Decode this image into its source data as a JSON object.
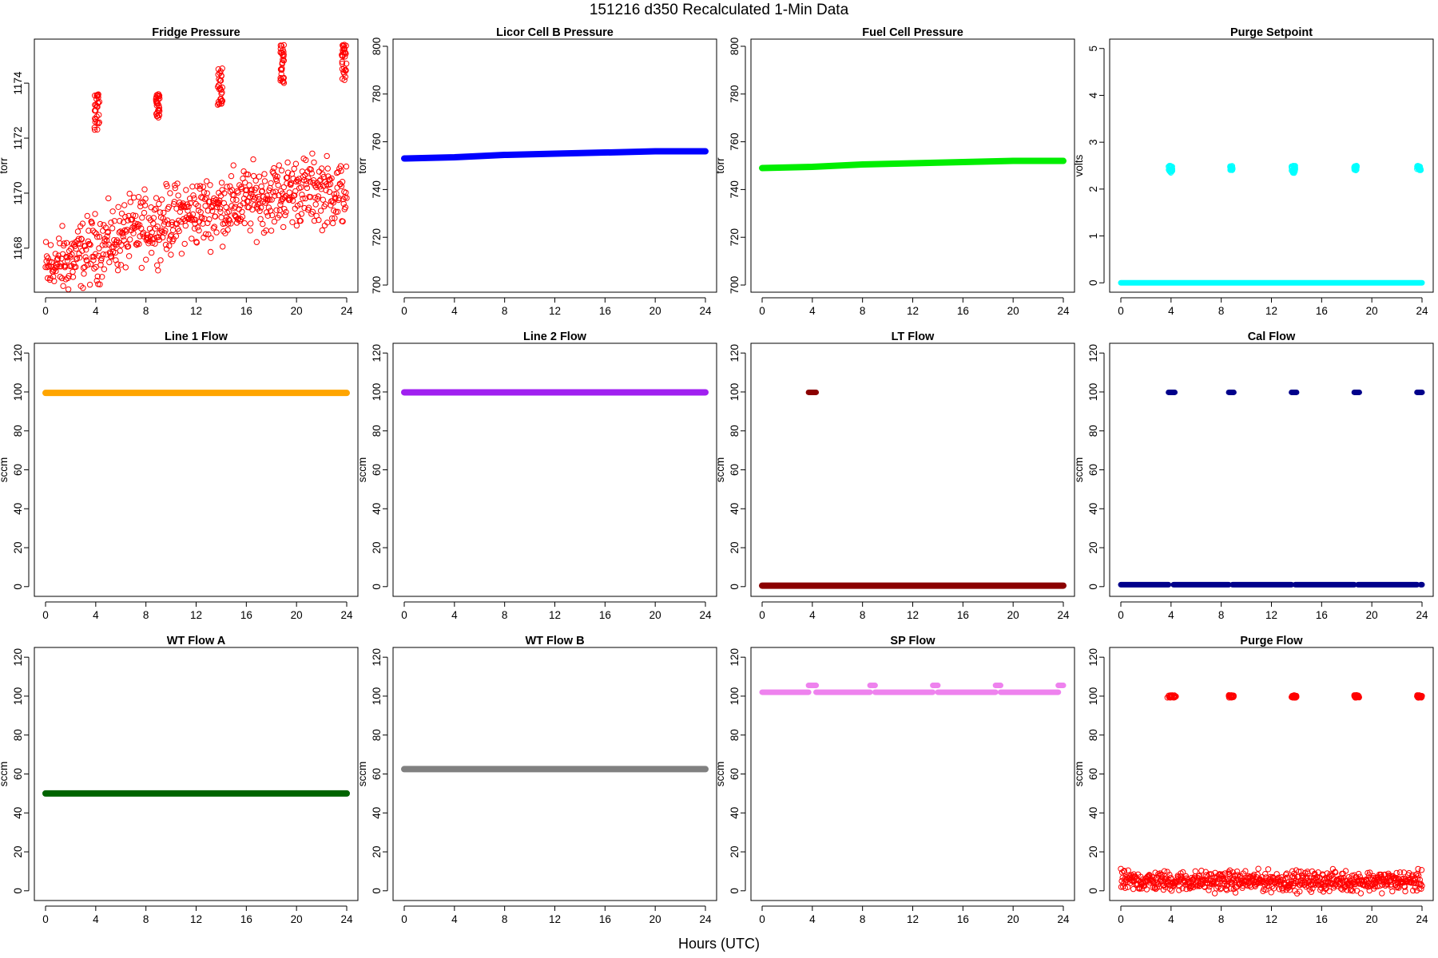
{
  "figure": {
    "title": "151216   d350   Recalculated 1-Min Data",
    "xlabel": "Hours (UTC)"
  },
  "chart_data": [
    {
      "type": "scatter",
      "title": "Fridge Pressure",
      "ylabel": "torr",
      "xlim": [
        0,
        24
      ],
      "ylim": [
        1166.4,
        1175.6
      ],
      "xticks": [
        0,
        4,
        8,
        12,
        16,
        20,
        24
      ],
      "yticks": [
        1168,
        1170,
        1172,
        1174
      ],
      "color": "#ff0000",
      "marker": "open-circle",
      "grid": false,
      "series": [
        {
          "kind": "trend",
          "x": [
            0,
            1,
            2,
            3,
            4,
            5,
            6,
            7,
            8,
            9,
            10,
            11,
            12,
            13,
            14,
            15,
            16,
            17,
            18,
            19,
            20,
            21,
            22,
            23,
            24
          ],
          "y": [
            1167.2,
            1167.4,
            1167.6,
            1167.8,
            1168.0,
            1168.2,
            1168.4,
            1168.6,
            1168.8,
            1168.9,
            1169.0,
            1169.2,
            1169.3,
            1169.4,
            1169.5,
            1169.6,
            1169.7,
            1169.8,
            1169.9,
            1170.0,
            1170.1,
            1170.1,
            1170.1,
            1170.0,
            1170.0
          ],
          "spread": 0.6
        },
        {
          "kind": "cluster",
          "x": [
            3.9,
            4.3
          ],
          "y": [
            1172.3,
            1173.6
          ]
        },
        {
          "kind": "cluster",
          "x": [
            8.8,
            9.1
          ],
          "y": [
            1172.7,
            1173.6
          ]
        },
        {
          "kind": "cluster",
          "x": [
            13.7,
            14.1
          ],
          "y": [
            1173.2,
            1174.6
          ]
        },
        {
          "kind": "cluster",
          "x": [
            18.7,
            19.0
          ],
          "y": [
            1174.0,
            1175.4
          ]
        },
        {
          "kind": "cluster",
          "x": [
            23.6,
            24.0
          ],
          "y": [
            1174.0,
            1175.4
          ]
        }
      ]
    },
    {
      "type": "scatter",
      "title": "Licor Cell B Pressure",
      "ylabel": "torr",
      "xlim": [
        0,
        24
      ],
      "ylim": [
        697,
        803
      ],
      "xticks": [
        0,
        4,
        8,
        12,
        16,
        20,
        24
      ],
      "yticks": [
        700,
        720,
        740,
        760,
        780,
        800
      ],
      "color": "#0000ff",
      "marker": "filled-band",
      "grid": false,
      "series": [
        {
          "kind": "line",
          "x": [
            0,
            4,
            8,
            12,
            16,
            20,
            24
          ],
          "y": [
            753,
            753.5,
            754.5,
            755,
            755.5,
            756,
            756
          ]
        }
      ]
    },
    {
      "type": "scatter",
      "title": "Fuel Cell Pressure",
      "ylabel": "torr",
      "xlim": [
        0,
        24
      ],
      "ylim": [
        697,
        803
      ],
      "xticks": [
        0,
        4,
        8,
        12,
        16,
        20,
        24
      ],
      "yticks": [
        700,
        720,
        740,
        760,
        780,
        800
      ],
      "color": "#00ee00",
      "marker": "filled-band",
      "grid": false,
      "series": [
        {
          "kind": "line",
          "x": [
            0,
            4,
            8,
            12,
            16,
            20,
            24
          ],
          "y": [
            749,
            749.5,
            750.5,
            751,
            751.5,
            752,
            752
          ]
        }
      ]
    },
    {
      "type": "scatter",
      "title": "Purge Setpoint",
      "ylabel": "volts",
      "xlim": [
        0,
        24
      ],
      "ylim": [
        -0.2,
        5.2
      ],
      "xticks": [
        0,
        4,
        8,
        12,
        16,
        20,
        24
      ],
      "yticks": [
        0,
        1,
        2,
        3,
        4,
        5
      ],
      "color": "#00ffff",
      "marker": "open-circle",
      "grid": false,
      "series": [
        {
          "kind": "line",
          "x": [
            0,
            24
          ],
          "y": [
            0,
            0
          ]
        },
        {
          "kind": "cluster",
          "x": [
            3.8,
            4.1
          ],
          "y": [
            2.35,
            2.5
          ]
        },
        {
          "kind": "cluster",
          "x": [
            8.7,
            8.9
          ],
          "y": [
            2.4,
            2.5
          ]
        },
        {
          "kind": "cluster",
          "x": [
            13.6,
            13.9
          ],
          "y": [
            2.33,
            2.5
          ]
        },
        {
          "kind": "cluster",
          "x": [
            18.6,
            18.8
          ],
          "y": [
            2.4,
            2.5
          ]
        },
        {
          "kind": "cluster",
          "x": [
            23.6,
            23.9
          ],
          "y": [
            2.4,
            2.5
          ]
        }
      ]
    },
    {
      "type": "scatter",
      "title": "Line 1 Flow",
      "ylabel": "sccm",
      "xlim": [
        0,
        24
      ],
      "ylim": [
        -5,
        125
      ],
      "xticks": [
        0,
        4,
        8,
        12,
        16,
        20,
        24
      ],
      "yticks": [
        0,
        20,
        40,
        60,
        80,
        100,
        120
      ],
      "color": "#ffa500",
      "marker": "filled-band",
      "grid": false,
      "series": [
        {
          "kind": "line",
          "x": [
            0,
            24
          ],
          "y": [
            99.5,
            99.5
          ]
        }
      ]
    },
    {
      "type": "scatter",
      "title": "Line 2 Flow",
      "ylabel": "sccm",
      "xlim": [
        0,
        24
      ],
      "ylim": [
        -5,
        125
      ],
      "xticks": [
        0,
        4,
        8,
        12,
        16,
        20,
        24
      ],
      "yticks": [
        0,
        20,
        40,
        60,
        80,
        100,
        120
      ],
      "color": "#a020f0",
      "marker": "filled-band",
      "grid": false,
      "series": [
        {
          "kind": "line",
          "x": [
            0,
            24
          ],
          "y": [
            99.8,
            99.8
          ]
        }
      ]
    },
    {
      "type": "scatter",
      "title": "LT Flow",
      "ylabel": "sccm",
      "xlim": [
        0,
        24
      ],
      "ylim": [
        -5,
        125
      ],
      "xticks": [
        0,
        4,
        8,
        12,
        16,
        20,
        24
      ],
      "yticks": [
        0,
        20,
        40,
        60,
        80,
        100,
        120
      ],
      "color": "#8b0000",
      "marker": "filled-band",
      "grid": false,
      "series": [
        {
          "kind": "line",
          "x": [
            0,
            24
          ],
          "y": [
            0.5,
            0.5
          ]
        },
        {
          "kind": "segments",
          "ranges": [
            [
              3.7,
              4.3
            ]
          ],
          "y": 99.8
        }
      ]
    },
    {
      "type": "scatter",
      "title": "Cal Flow",
      "ylabel": "sccm",
      "xlim": [
        0,
        24
      ],
      "ylim": [
        -5,
        125
      ],
      "xticks": [
        0,
        4,
        8,
        12,
        16,
        20,
        24
      ],
      "yticks": [
        0,
        20,
        40,
        60,
        80,
        100,
        120
      ],
      "color": "#00008b",
      "marker": "filled-band",
      "grid": false,
      "series": [
        {
          "kind": "segments",
          "ranges": [
            [
              0,
              3.8
            ],
            [
              4.2,
              8.6
            ],
            [
              8.9,
              13.6
            ],
            [
              13.9,
              18.6
            ],
            [
              18.9,
              23.6
            ],
            [
              23.9,
              24
            ]
          ],
          "y": 1
        },
        {
          "kind": "segments",
          "ranges": [
            [
              3.8,
              4.3
            ],
            [
              8.6,
              9.0
            ],
            [
              13.6,
              14.0
            ],
            [
              18.6,
              19.0
            ],
            [
              23.6,
              24.0
            ]
          ],
          "y": 99.8
        }
      ]
    },
    {
      "type": "scatter",
      "title": "WT Flow A",
      "ylabel": "sccm",
      "xlim": [
        0,
        24
      ],
      "ylim": [
        -5,
        125
      ],
      "xticks": [
        0,
        4,
        8,
        12,
        16,
        20,
        24
      ],
      "yticks": [
        0,
        20,
        40,
        60,
        80,
        100,
        120
      ],
      "color": "#006400",
      "marker": "filled-band",
      "grid": false,
      "series": [
        {
          "kind": "line",
          "x": [
            0,
            24
          ],
          "y": [
            50,
            50
          ]
        }
      ]
    },
    {
      "type": "scatter",
      "title": "WT Flow B",
      "ylabel": "sccm",
      "xlim": [
        0,
        24
      ],
      "ylim": [
        -5,
        125
      ],
      "xticks": [
        0,
        4,
        8,
        12,
        16,
        20,
        24
      ],
      "yticks": [
        0,
        20,
        40,
        60,
        80,
        100,
        120
      ],
      "color": "#808080",
      "marker": "filled-band",
      "grid": false,
      "series": [
        {
          "kind": "line",
          "x": [
            0,
            24
          ],
          "y": [
            62.5,
            62.5
          ]
        }
      ]
    },
    {
      "type": "scatter",
      "title": "SP Flow",
      "ylabel": "sccm",
      "xlim": [
        0,
        24
      ],
      "ylim": [
        -5,
        125
      ],
      "xticks": [
        0,
        4,
        8,
        12,
        16,
        20,
        24
      ],
      "yticks": [
        0,
        20,
        40,
        60,
        80,
        100,
        120
      ],
      "color": "#ee82ee",
      "marker": "filled-band",
      "grid": false,
      "series": [
        {
          "kind": "segments",
          "ranges": [
            [
              0,
              3.7
            ],
            [
              4.3,
              8.6
            ],
            [
              9.0,
              13.6
            ],
            [
              14.0,
              18.6
            ],
            [
              19.0,
              23.6
            ]
          ],
          "y": 102
        },
        {
          "kind": "segments",
          "ranges": [
            [
              3.7,
              4.3
            ],
            [
              8.6,
              9.0
            ],
            [
              13.6,
              14.0
            ],
            [
              18.6,
              19.0
            ],
            [
              23.6,
              24.0
            ]
          ],
          "y": 105.5
        }
      ]
    },
    {
      "type": "scatter",
      "title": "Purge Flow",
      "ylabel": "sccm",
      "xlim": [
        0,
        24
      ],
      "ylim": [
        -5,
        125
      ],
      "xticks": [
        0,
        4,
        8,
        12,
        16,
        20,
        24
      ],
      "yticks": [
        0,
        20,
        40,
        60,
        80,
        100,
        120
      ],
      "color": "#ff0000",
      "marker": "open-circle",
      "grid": false,
      "series": [
        {
          "kind": "trend",
          "x": [
            0,
            24
          ],
          "y": [
            5,
            5
          ],
          "spread": 2.5
        },
        {
          "kind": "cluster",
          "x": [
            3.7,
            4.4
          ],
          "y": [
            99.2,
            100.5
          ]
        },
        {
          "kind": "cluster",
          "x": [
            8.6,
            9.0
          ],
          "y": [
            99.2,
            100.5
          ]
        },
        {
          "kind": "cluster",
          "x": [
            13.6,
            14.0
          ],
          "y": [
            99.2,
            100.5
          ]
        },
        {
          "kind": "cluster",
          "x": [
            18.6,
            19.0
          ],
          "y": [
            99.2,
            100.5
          ]
        },
        {
          "kind": "cluster",
          "x": [
            23.6,
            24.0
          ],
          "y": [
            99.2,
            100.5
          ]
        }
      ]
    }
  ]
}
